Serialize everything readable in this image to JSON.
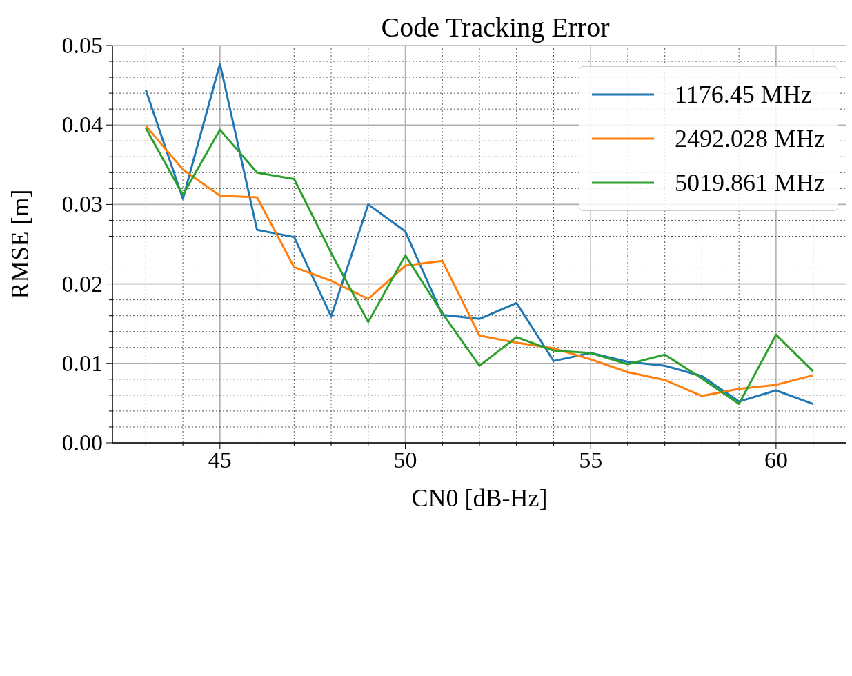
{
  "chart_data": {
    "type": "line",
    "title": "Code Tracking Error",
    "xlabel": "CN0 [dB-Hz]",
    "ylabel": "RMSE [m]",
    "x": [
      43,
      44,
      45,
      46,
      47,
      48,
      49,
      50,
      51,
      52,
      53,
      54,
      55,
      56,
      57,
      58,
      59,
      60,
      61
    ],
    "series": [
      {
        "name": "1176.45 MHz",
        "color": "#1f77b4",
        "values": [
          0.0444,
          0.0307,
          0.0477,
          0.0268,
          0.0259,
          0.0159,
          0.03,
          0.0266,
          0.0161,
          0.0156,
          0.0176,
          0.0103,
          0.0113,
          0.0102,
          0.0097,
          0.0084,
          0.0052,
          0.0066,
          0.0049
        ]
      },
      {
        "name": "2492.028 MHz",
        "color": "#ff7f0e",
        "values": [
          0.0399,
          0.0344,
          0.0311,
          0.0309,
          0.0221,
          0.0204,
          0.0181,
          0.0223,
          0.0229,
          0.0135,
          0.0126,
          0.0119,
          0.0105,
          0.0089,
          0.0079,
          0.0059,
          0.0068,
          0.0073,
          0.0085
        ]
      },
      {
        "name": "5019.861 MHz",
        "color": "#2ca02c",
        "values": [
          0.0396,
          0.0312,
          0.0394,
          0.034,
          0.0332,
          0.0239,
          0.0152,
          0.0236,
          0.0163,
          0.0097,
          0.0133,
          0.0116,
          0.0113,
          0.0099,
          0.0111,
          0.0081,
          0.0049,
          0.0136,
          0.009
        ]
      }
    ],
    "xlim": [
      42.1,
      61.9
    ],
    "xticks": [
      {
        "value": 43,
        "label": null
      },
      {
        "value": 44,
        "label": null
      },
      45,
      {
        "value": 46,
        "label": null
      },
      {
        "value": 47,
        "label": null
      },
      {
        "value": 48,
        "label": null
      },
      {
        "value": 49,
        "label": null
      },
      50,
      {
        "value": 51,
        "label": null
      },
      {
        "value": 52,
        "label": null
      },
      {
        "value": 53,
        "label": null
      },
      {
        "value": 54,
        "label": null
      },
      55,
      {
        "value": 56,
        "label": null
      },
      {
        "value": 57,
        "label": null
      },
      {
        "value": 58,
        "label": null
      },
      {
        "value": 59,
        "label": null
      },
      60,
      {
        "value": 61,
        "label": null
      }
    ],
    "ylim": [
      0,
      0.05
    ],
    "yticks": [
      {
        "value": 0,
        "label": "0.00"
      },
      {
        "value": 0.002,
        "label": null
      },
      {
        "value": 0.004,
        "label": null
      },
      {
        "value": 0.006,
        "label": null
      },
      {
        "value": 0.008,
        "label": null
      },
      {
        "value": 0.01,
        "label": "0.01"
      },
      {
        "value": 0.012,
        "label": null
      },
      {
        "value": 0.014,
        "label": null
      },
      {
        "value": 0.016,
        "label": null
      },
      {
        "value": 0.018,
        "label": null
      },
      {
        "value": 0.02,
        "label": "0.02"
      },
      {
        "value": 0.022,
        "label": null
      },
      {
        "value": 0.024,
        "label": null
      },
      {
        "value": 0.026,
        "label": null
      },
      {
        "value": 0.028,
        "label": null
      },
      {
        "value": 0.03,
        "label": "0.03"
      },
      {
        "value": 0.032,
        "label": null
      },
      {
        "value": 0.034,
        "label": null
      },
      {
        "value": 0.036,
        "label": null
      },
      {
        "value": 0.038,
        "label": null
      },
      {
        "value": 0.04,
        "label": "0.04"
      },
      {
        "value": 0.042,
        "label": null
      },
      {
        "value": 0.044,
        "label": null
      },
      {
        "value": 0.046,
        "label": null
      },
      {
        "value": 0.048,
        "label": null
      },
      {
        "value": 0.05,
        "label": "0.05"
      }
    ],
    "grid": true,
    "legend": "top right",
    "marker": "none",
    "line_style": "solid"
  }
}
